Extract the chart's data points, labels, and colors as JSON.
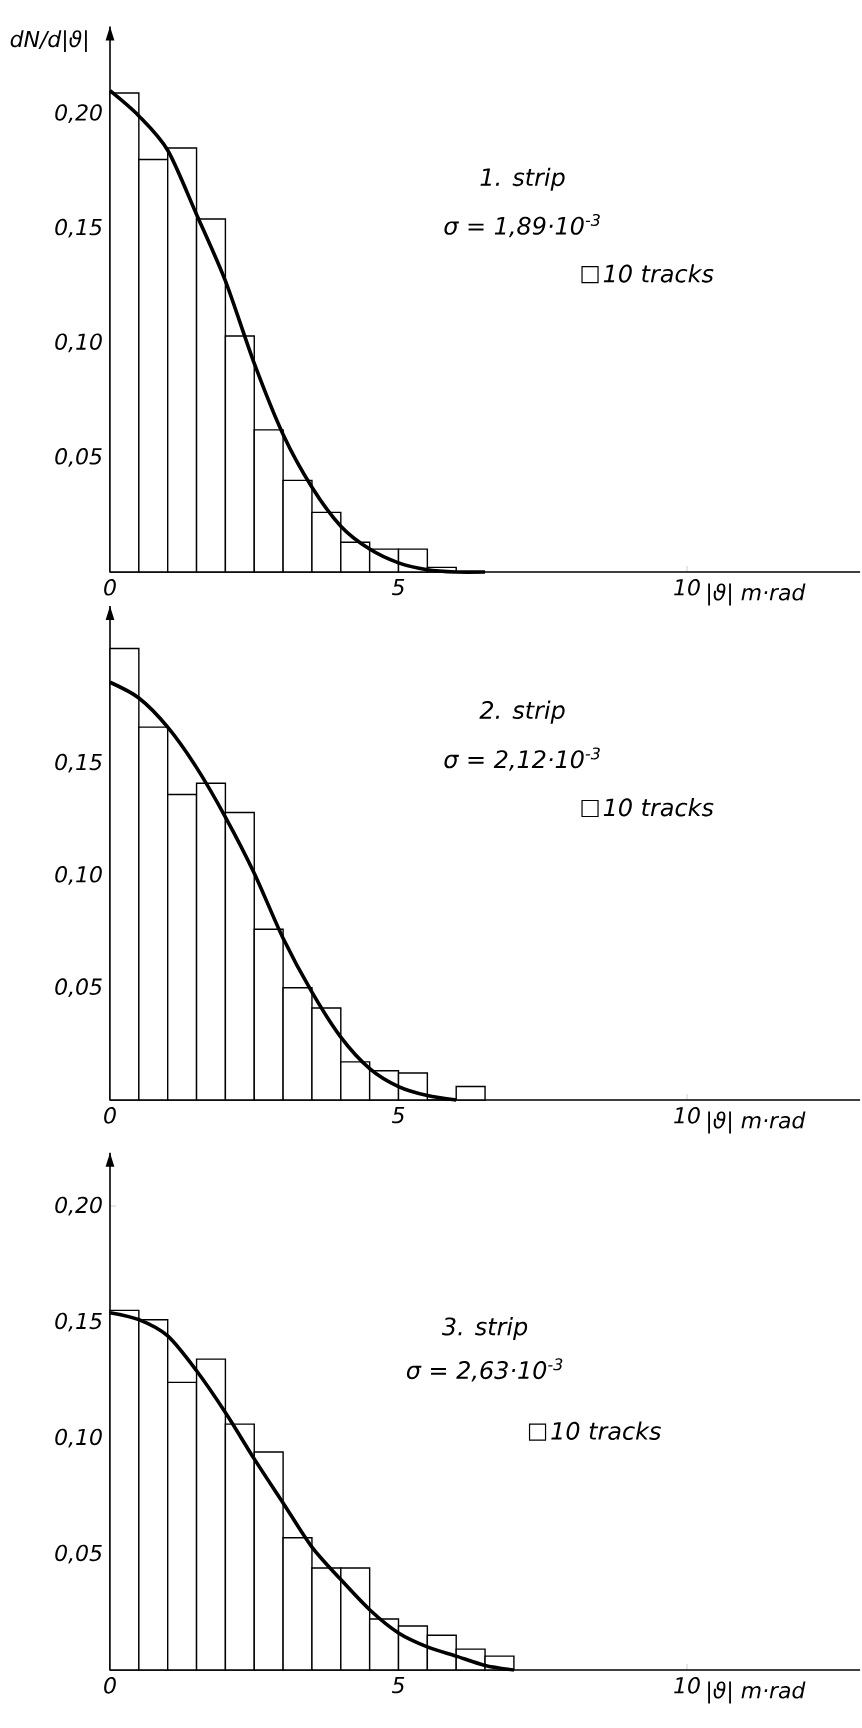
{
  "chart_data": [
    {
      "type": "histogram",
      "ylabel": "dN/d|ϑ|",
      "xlabel": "|ϑ| m·rad",
      "annotations": [
        "1. strip",
        "σ = 1,89·10$^{-3}$"
      ],
      "legend": "right",
      "xlim": [
        0,
        13
      ],
      "ylim": [
        0,
        0.238
      ],
      "xticks": [
        0,
        5,
        10
      ],
      "yticks": [
        {
          "value": 0.05,
          "label": "0,05"
        },
        {
          "value": 0.1,
          "label": "0,10"
        },
        {
          "value": 0.15,
          "label": "0,15"
        },
        {
          "value": 0.2,
          "label": "0,20"
        }
      ],
      "series": [
        {
          "type": "histogram",
          "name": "10 tracks",
          "color": "#000000",
          "bins": [
            0,
            0.5,
            1,
            1.5,
            2,
            2.5,
            3,
            3.5,
            4,
            4.5,
            5,
            5.5,
            6
          ],
          "values": [
            0.209,
            0.18,
            0.185,
            0.154,
            0.103,
            0.062,
            0.04,
            0.026,
            0.013,
            0.01,
            0.01,
            0.002
          ]
        },
        {
          "type": "line",
          "color": "#000000",
          "x": [
            0,
            0.5,
            1,
            1.5,
            2,
            2.5,
            3,
            3.5,
            4,
            4.5,
            5,
            5.5,
            6,
            6.5
          ],
          "values": [
            0.21,
            0.199,
            0.184,
            0.156,
            0.127,
            0.091,
            0.06,
            0.037,
            0.02,
            0.01,
            0.004,
            0.001,
            0,
            0
          ]
        }
      ]
    },
    {
      "type": "histogram",
      "xlabel": "|ϑ| m·rad",
      "annotations": [
        "2. strip",
        "σ = 2,12·10$^{-3}$"
      ],
      "legend": "right",
      "xlim": [
        0,
        13
      ],
      "ylim": [
        0,
        0.22
      ],
      "xticks": [
        0,
        5,
        10
      ],
      "yticks": [
        {
          "value": 0.05,
          "label": "0,05"
        },
        {
          "value": 0.1,
          "label": "0,10"
        },
        {
          "value": 0.15,
          "label": "0,15"
        }
      ],
      "series": [
        {
          "type": "histogram",
          "name": "10 tracks",
          "color": "#000000",
          "bins": [
            0,
            0.5,
            1,
            1.5,
            2,
            2.5,
            3,
            3.5,
            4,
            4.5,
            5,
            5.5,
            6,
            6.5
          ],
          "values": [
            0.201,
            0.166,
            0.136,
            0.141,
            0.128,
            0.076,
            0.05,
            0.041,
            0.017,
            0.013,
            0.012,
            0,
            0.006
          ]
        },
        {
          "type": "line",
          "color": "#000000",
          "x": [
            0,
            0.5,
            1,
            1.5,
            2,
            2.5,
            3,
            3.5,
            4,
            4.5,
            5,
            5.5,
            6
          ],
          "values": [
            0.186,
            0.179,
            0.166,
            0.148,
            0.126,
            0.101,
            0.072,
            0.048,
            0.028,
            0.014,
            0.006,
            0.002,
            0
          ]
        }
      ]
    },
    {
      "type": "histogram",
      "xlabel": "|ϑ| m·rad",
      "annotations": [
        "3. strip",
        "σ = 2,63·10$^{-3}$"
      ],
      "legend": "right",
      "xlim": [
        0,
        13
      ],
      "ylim": [
        0,
        0.223
      ],
      "xticks": [
        0,
        5,
        10
      ],
      "yticks": [
        {
          "value": 0.05,
          "label": "0,05"
        },
        {
          "value": 0.1,
          "label": "0,10"
        },
        {
          "value": 0.15,
          "label": "0,15"
        },
        {
          "value": 0.2,
          "label": "0,20"
        }
      ],
      "series": [
        {
          "type": "histogram",
          "name": "10 tracks",
          "color": "#000000",
          "bins": [
            0,
            0.5,
            1,
            1.5,
            2,
            2.5,
            3,
            3.5,
            4,
            4.5,
            5,
            5.5,
            6,
            6.5,
            7
          ],
          "values": [
            0.155,
            0.151,
            0.124,
            0.134,
            0.106,
            0.094,
            0.057,
            0.044,
            0.044,
            0.022,
            0.019,
            0.015,
            0.009,
            0.006
          ]
        },
        {
          "type": "line",
          "color": "#000000",
          "x": [
            0,
            0.5,
            1,
            1.5,
            2,
            2.5,
            3,
            3.5,
            4,
            4.5,
            5,
            5.5,
            6,
            6.5,
            7
          ],
          "values": [
            0.154,
            0.151,
            0.144,
            0.129,
            0.111,
            0.091,
            0.072,
            0.053,
            0.039,
            0.026,
            0.016,
            0.01,
            0.006,
            0.002,
            0
          ]
        }
      ]
    }
  ]
}
